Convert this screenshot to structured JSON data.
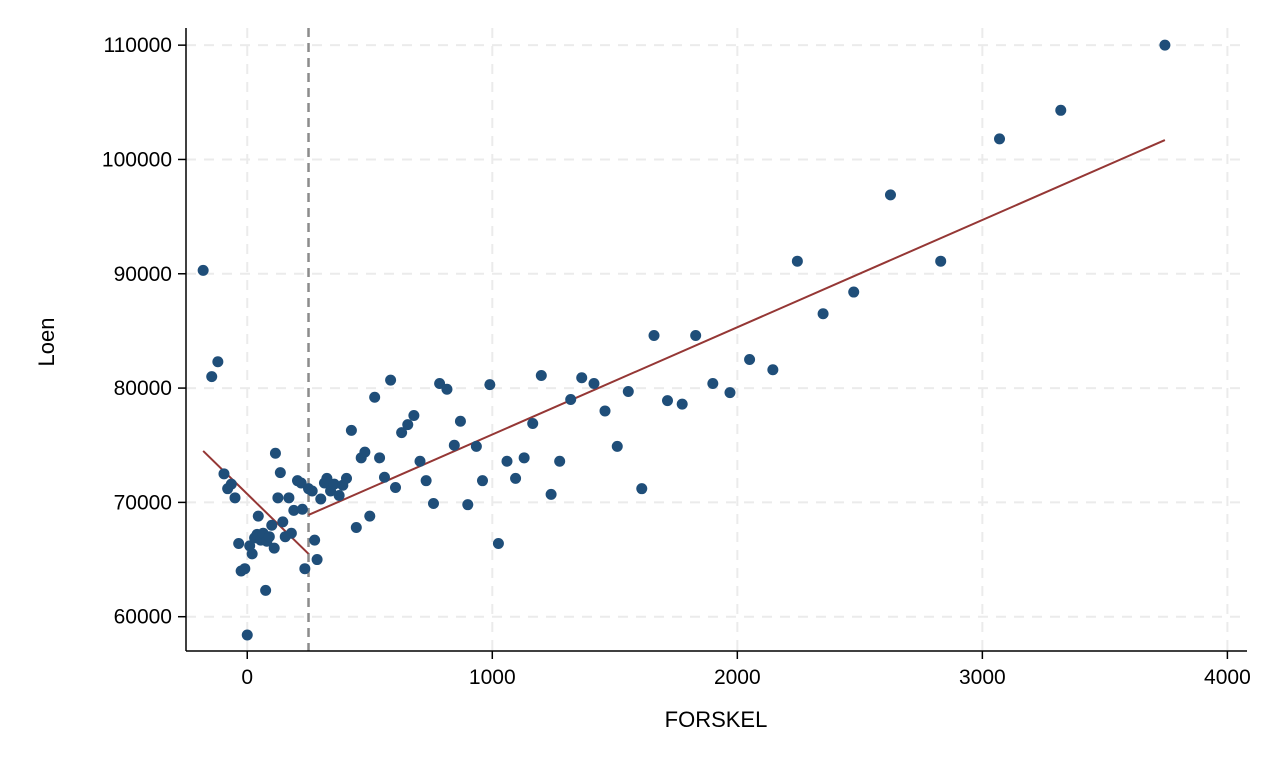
{
  "chart_data": {
    "type": "scatter",
    "xlabel": "FORSKEL",
    "ylabel": "Loen",
    "xlim": [
      -250,
      4080
    ],
    "ylim": [
      57000,
      111500
    ],
    "x_ticks": [
      0,
      1000,
      2000,
      3000,
      4000
    ],
    "y_ticks": [
      60000,
      70000,
      80000,
      90000,
      100000,
      110000
    ],
    "grid": "dashed",
    "cutoff_x": 250,
    "colors": {
      "points": "#1f4e79",
      "fit_line": "#953735",
      "cutoff_line": "#8c8c8c",
      "grid": "#ebebeb",
      "axis": "#000000"
    },
    "points": [
      [
        -180,
        90300
      ],
      [
        -145,
        81000
      ],
      [
        -120,
        82300
      ],
      [
        -95,
        72500
      ],
      [
        -80,
        71200
      ],
      [
        -65,
        71600
      ],
      [
        -50,
        70400
      ],
      [
        -35,
        66400
      ],
      [
        -25,
        64000
      ],
      [
        -10,
        64200
      ],
      [
        0,
        58400
      ],
      [
        10,
        66200
      ],
      [
        20,
        65500
      ],
      [
        30,
        66900
      ],
      [
        40,
        67200
      ],
      [
        45,
        68800
      ],
      [
        55,
        66700
      ],
      [
        65,
        67300
      ],
      [
        75,
        62300
      ],
      [
        80,
        66600
      ],
      [
        90,
        67000
      ],
      [
        100,
        68000
      ],
      [
        110,
        66000
      ],
      [
        115,
        74300
      ],
      [
        125,
        70400
      ],
      [
        135,
        72600
      ],
      [
        145,
        68300
      ],
      [
        155,
        67000
      ],
      [
        170,
        70400
      ],
      [
        180,
        67300
      ],
      [
        190,
        69300
      ],
      [
        205,
        71900
      ],
      [
        220,
        71700
      ],
      [
        225,
        69400
      ],
      [
        235,
        64200
      ],
      [
        250,
        71200
      ],
      [
        265,
        71000
      ],
      [
        275,
        66700
      ],
      [
        285,
        65000
      ],
      [
        300,
        70300
      ],
      [
        315,
        71700
      ],
      [
        325,
        72100
      ],
      [
        340,
        71000
      ],
      [
        355,
        71600
      ],
      [
        375,
        70600
      ],
      [
        390,
        71500
      ],
      [
        405,
        72100
      ],
      [
        425,
        76300
      ],
      [
        445,
        67800
      ],
      [
        465,
        73900
      ],
      [
        480,
        74400
      ],
      [
        500,
        68800
      ],
      [
        520,
        79200
      ],
      [
        540,
        73900
      ],
      [
        560,
        72200
      ],
      [
        585,
        80700
      ],
      [
        605,
        71300
      ],
      [
        630,
        76100
      ],
      [
        655,
        76800
      ],
      [
        680,
        77600
      ],
      [
        705,
        73600
      ],
      [
        730,
        71900
      ],
      [
        760,
        69900
      ],
      [
        785,
        80400
      ],
      [
        815,
        79900
      ],
      [
        845,
        75000
      ],
      [
        870,
        77100
      ],
      [
        900,
        69800
      ],
      [
        935,
        74900
      ],
      [
        960,
        71900
      ],
      [
        990,
        80300
      ],
      [
        1025,
        66400
      ],
      [
        1060,
        73600
      ],
      [
        1095,
        72100
      ],
      [
        1130,
        73900
      ],
      [
        1165,
        76900
      ],
      [
        1200,
        81100
      ],
      [
        1240,
        70700
      ],
      [
        1275,
        73600
      ],
      [
        1320,
        79000
      ],
      [
        1365,
        80900
      ],
      [
        1415,
        80400
      ],
      [
        1460,
        78000
      ],
      [
        1510,
        74900
      ],
      [
        1555,
        79700
      ],
      [
        1610,
        71200
      ],
      [
        1660,
        84600
      ],
      [
        1715,
        78900
      ],
      [
        1775,
        78600
      ],
      [
        1830,
        84600
      ],
      [
        1900,
        80400
      ],
      [
        1970,
        79600
      ],
      [
        2050,
        82500
      ],
      [
        2145,
        81600
      ],
      [
        2245,
        91100
      ],
      [
        2350,
        86500
      ],
      [
        2475,
        88400
      ],
      [
        2625,
        96900
      ],
      [
        2830,
        91100
      ],
      [
        3070,
        101800
      ],
      [
        3320,
        104300
      ],
      [
        3745,
        110000
      ]
    ],
    "fit_left": [
      [
        -180,
        74500
      ],
      [
        250,
        65500
      ]
    ],
    "fit_right": [
      [
        250,
        68900
      ],
      [
        3745,
        101700
      ]
    ]
  }
}
